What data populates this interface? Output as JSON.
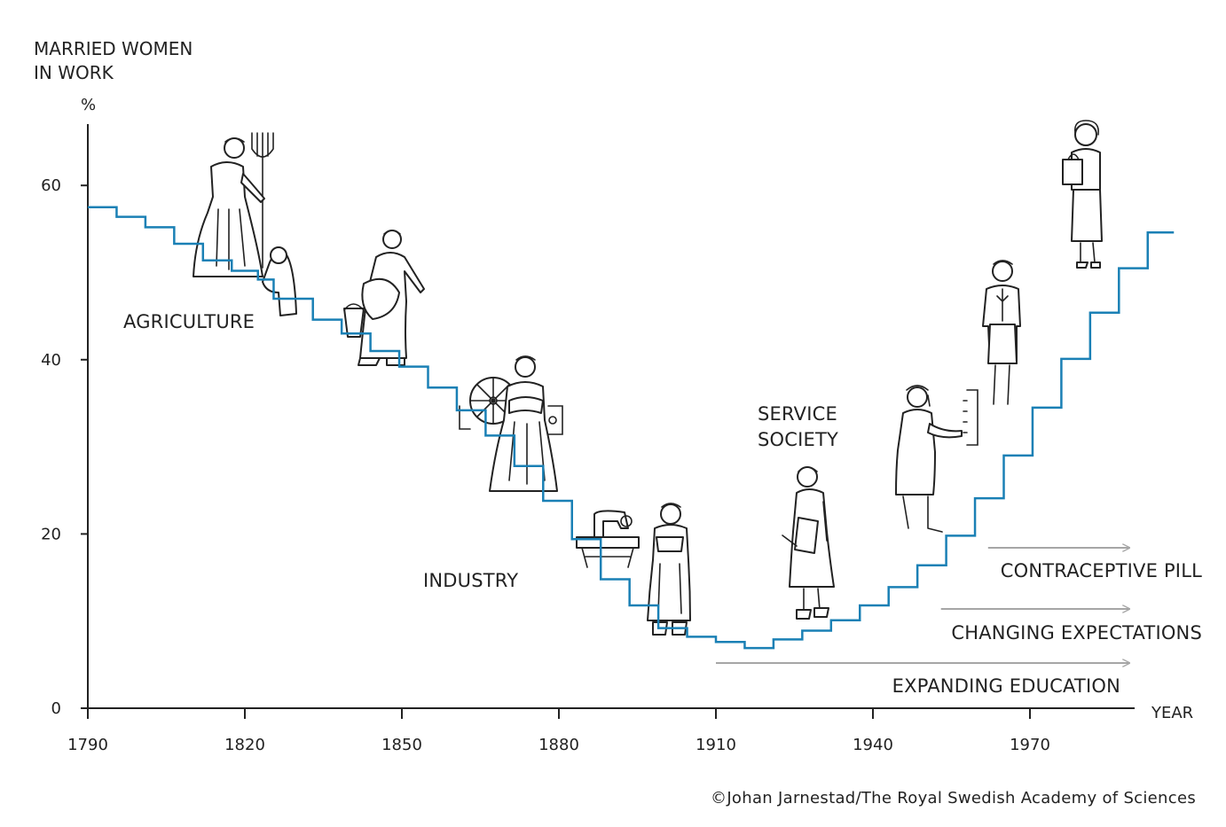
{
  "chart_data": {
    "type": "line",
    "line_style": "step",
    "title": "",
    "ylabel": "MARRIED WOMEN IN WORK",
    "ylabel_lines": [
      "MARRIED WOMEN",
      "IN WORK"
    ],
    "yunit": "%",
    "xlabel": "YEAR",
    "xlim": [
      1790,
      1990
    ],
    "ylim": [
      0,
      67
    ],
    "xticks": [
      1790,
      1820,
      1850,
      1880,
      1910,
      1940,
      1970
    ],
    "yticks": [
      0,
      20,
      40,
      60
    ],
    "grid": false,
    "series": [
      {
        "color": "#1a80b5",
        "points": [
          {
            "x": 1790,
            "y": 57.5
          },
          {
            "x": 1795.5,
            "y": 56.4
          },
          {
            "x": 1801,
            "y": 55.2
          },
          {
            "x": 1806.5,
            "y": 53.3
          },
          {
            "x": 1812,
            "y": 51.4
          },
          {
            "x": 1817.5,
            "y": 50.2
          },
          {
            "x": 1822.5,
            "y": 49.2
          },
          {
            "x": 1825.5,
            "y": 47.0
          },
          {
            "x": 1833,
            "y": 44.6
          },
          {
            "x": 1838.5,
            "y": 43.0
          },
          {
            "x": 1844,
            "y": 41.0
          },
          {
            "x": 1849.5,
            "y": 39.2
          },
          {
            "x": 1855,
            "y": 36.8
          },
          {
            "x": 1860.5,
            "y": 34.2
          },
          {
            "x": 1866,
            "y": 31.3
          },
          {
            "x": 1871.5,
            "y": 27.8
          },
          {
            "x": 1877,
            "y": 23.8
          },
          {
            "x": 1882.5,
            "y": 19.4
          },
          {
            "x": 1888,
            "y": 14.8
          },
          {
            "x": 1893.5,
            "y": 11.8
          },
          {
            "x": 1899,
            "y": 9.2
          },
          {
            "x": 1904.5,
            "y": 8.2
          },
          {
            "x": 1910,
            "y": 7.6
          },
          {
            "x": 1915.5,
            "y": 6.9
          },
          {
            "x": 1921,
            "y": 7.9
          },
          {
            "x": 1926.5,
            "y": 8.9
          },
          {
            "x": 1932,
            "y": 10.1
          },
          {
            "x": 1937.5,
            "y": 11.8
          },
          {
            "x": 1943,
            "y": 13.9
          },
          {
            "x": 1948.5,
            "y": 16.4
          },
          {
            "x": 1954,
            "y": 19.8
          },
          {
            "x": 1959.5,
            "y": 24.1
          },
          {
            "x": 1965,
            "y": 29.0
          },
          {
            "x": 1970.5,
            "y": 34.5
          },
          {
            "x": 1976,
            "y": 40.1
          },
          {
            "x": 1981.5,
            "y": 45.4
          },
          {
            "x": 1987,
            "y": 50.5
          },
          {
            "x": 1992.5,
            "y": 54.6
          },
          {
            "x": 1997.5,
            "y": 54.6
          }
        ]
      }
    ],
    "annotations": {
      "sectors": [
        {
          "key": "agriculture",
          "lines": [
            "AGRICULTURE"
          ]
        },
        {
          "key": "industry",
          "lines": [
            "INDUSTRY"
          ]
        },
        {
          "key": "service",
          "lines": [
            "SERVICE",
            "SOCIETY"
          ]
        }
      ],
      "drivers": [
        {
          "key": "pill",
          "label": "CONTRACEPTIVE PILL",
          "x_start": 1962,
          "x_end": 1989
        },
        {
          "key": "expectations",
          "label": "CHANGING EXPECTATIONS",
          "x_start": 1953,
          "x_end": 1989
        },
        {
          "key": "education",
          "label": "EXPANDING EDUCATION",
          "x_start": 1910,
          "x_end": 1989
        }
      ]
    }
  },
  "colors": {
    "step_line": "#1a80b5",
    "axis": "#222222",
    "arrow": "#a6a6a6",
    "text": "#222222"
  },
  "credit": "©Johan Jarnestad/The Royal Swedish Academy of Sciences",
  "illustrations": [
    "woman-with-pitchfork-and-child-icon",
    "woman-with-bucket-icon",
    "woman-with-spinning-wheel-icon",
    "woman-with-sewing-machine-icon",
    "woman-with-book-icon",
    "telephone-operator-woman-icon",
    "woman-in-suit-icon",
    "woman-with-handbag-icon"
  ]
}
